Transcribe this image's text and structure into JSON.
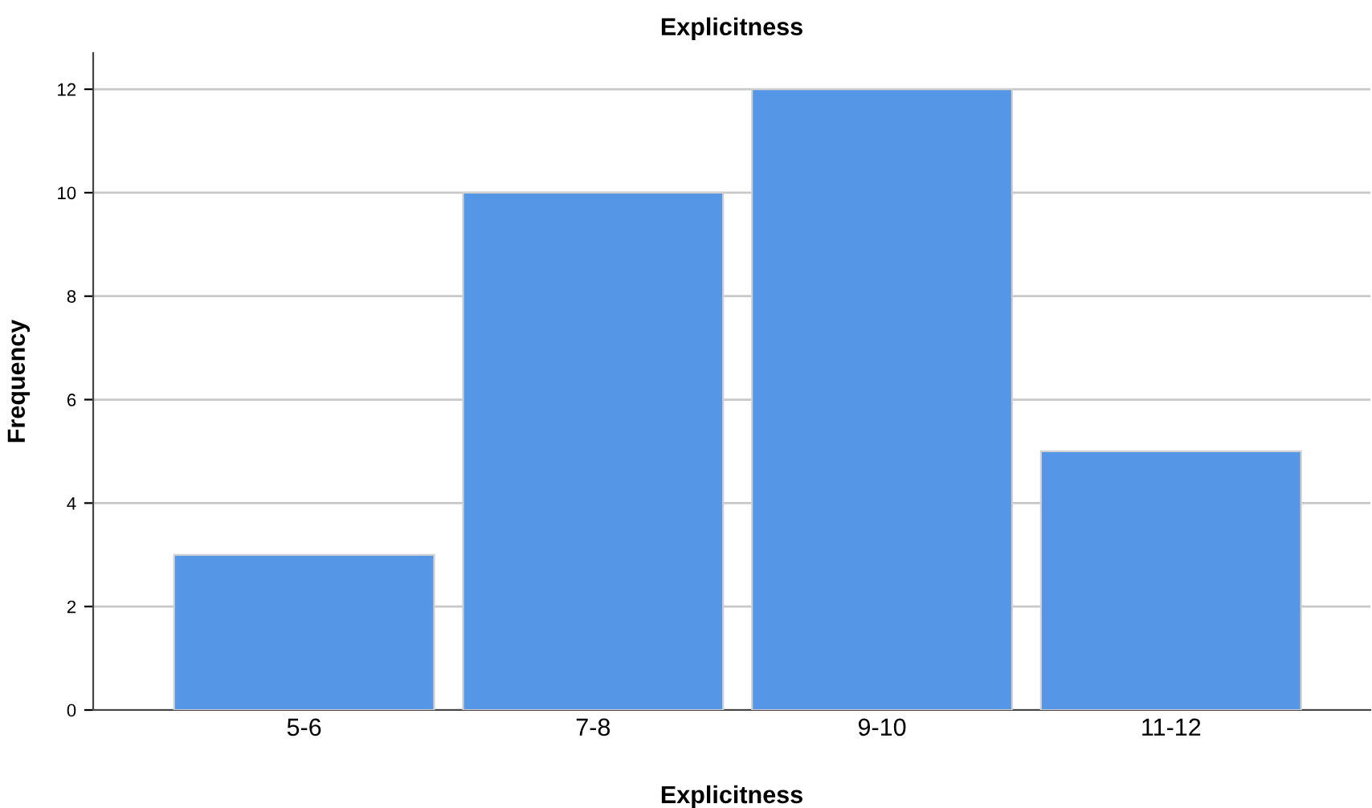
{
  "chart_data": {
    "type": "bar",
    "title": "Explicitness",
    "xlabel": "Explicitness",
    "ylabel": "Frequency",
    "categories": [
      "5-6",
      "7-8",
      "9-10",
      "11-12"
    ],
    "values": [
      3,
      10,
      12,
      5
    ],
    "color": "#5596e6",
    "ylim": [
      0,
      12.7
    ],
    "yticks": [
      0,
      2,
      4,
      6,
      8,
      10,
      12
    ],
    "grid": "y"
  }
}
